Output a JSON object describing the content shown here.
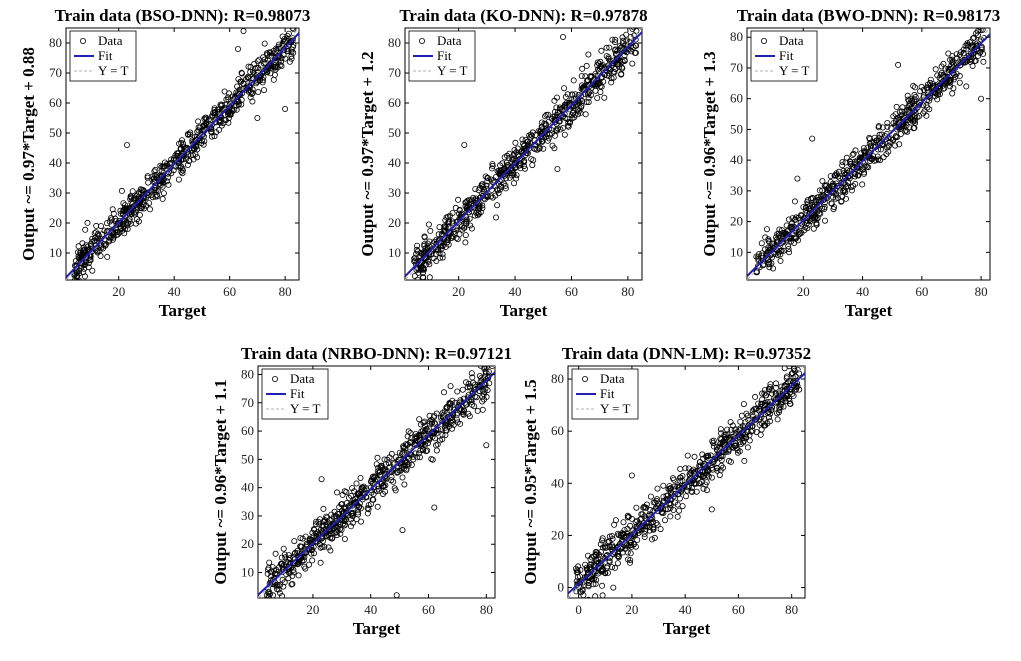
{
  "chart_data": [
    {
      "type": "scatter",
      "title": "Train data (BSO-DNN): R=0.98073",
      "xlabel": "Target",
      "ylabel": "Output ~= 0.97*Target + 0.88",
      "xlim": [
        1,
        85
      ],
      "ylim": [
        1,
        85
      ],
      "xticks": [
        20,
        40,
        60,
        80
      ],
      "yticks": [
        10,
        20,
        30,
        40,
        50,
        60,
        70,
        80
      ],
      "fit": {
        "slope": 0.97,
        "intercept": 0.88
      },
      "legend": [
        "Data",
        "Fit",
        "Y = T"
      ],
      "legend_position": "top-left",
      "grid": false,
      "seed": 11,
      "n_points": 700,
      "noise": 3.0,
      "outliers": [
        [
          23,
          46
        ],
        [
          63,
          78
        ],
        [
          80,
          58
        ],
        [
          70,
          55
        ],
        [
          65,
          84
        ]
      ]
    },
    {
      "type": "scatter",
      "title": "Train data (KO-DNN): R=0.97878",
      "xlabel": "Target",
      "ylabel": "Output ~= 0.97*Target + 1.2",
      "xlim": [
        1,
        85
      ],
      "ylim": [
        1,
        85
      ],
      "xticks": [
        20,
        40,
        60,
        80
      ],
      "yticks": [
        10,
        20,
        30,
        40,
        50,
        60,
        70,
        80
      ],
      "fit": {
        "slope": 0.97,
        "intercept": 1.2
      },
      "legend": [
        "Data",
        "Fit",
        "Y = T"
      ],
      "legend_position": "top-left",
      "grid": false,
      "seed": 23,
      "n_points": 700,
      "noise": 3.2,
      "outliers": [
        [
          22,
          46
        ],
        [
          57,
          82
        ],
        [
          55,
          38
        ],
        [
          83,
          84
        ]
      ]
    },
    {
      "type": "scatter",
      "title": "Train data (BWO-DNN): R=0.98173",
      "xlabel": "Target",
      "ylabel": "Output ~= 0.96*Target + 1.3",
      "xlim": [
        1,
        83
      ],
      "ylim": [
        1,
        83
      ],
      "xticks": [
        20,
        40,
        60,
        80
      ],
      "yticks": [
        10,
        20,
        30,
        40,
        50,
        60,
        70,
        80
      ],
      "fit": {
        "slope": 0.96,
        "intercept": 1.3
      },
      "legend": [
        "Data",
        "Fit",
        "Y = T"
      ],
      "legend_position": "top-left",
      "grid": false,
      "seed": 37,
      "n_points": 700,
      "noise": 2.9,
      "outliers": [
        [
          23,
          47
        ],
        [
          18,
          34
        ],
        [
          80,
          60
        ],
        [
          75,
          64
        ],
        [
          52,
          71
        ]
      ]
    },
    {
      "type": "scatter",
      "title": "Train data (NRBO-DNN): R=0.97121",
      "xlabel": "Target",
      "ylabel": "Output ~= 0.96*Target + 1.1",
      "xlim": [
        1,
        83
      ],
      "ylim": [
        1,
        83
      ],
      "xticks": [
        20,
        40,
        60,
        80
      ],
      "yticks": [
        10,
        20,
        30,
        40,
        50,
        60,
        70,
        80
      ],
      "fit": {
        "slope": 0.96,
        "intercept": 1.1
      },
      "legend": [
        "Data",
        "Fit",
        "Y = T"
      ],
      "legend_position": "top-left",
      "grid": false,
      "seed": 53,
      "n_points": 700,
      "noise": 3.6,
      "outliers": [
        [
          23,
          43
        ],
        [
          49,
          2
        ],
        [
          51,
          25
        ],
        [
          62,
          33
        ],
        [
          80,
          55
        ],
        [
          82,
          83
        ]
      ]
    },
    {
      "type": "scatter",
      "title": "Train data (DNN-LM): R=0.97352",
      "xlabel": "Target",
      "ylabel": "Output ~= 0.95*Target + 1.5",
      "xlim": [
        -4,
        85
      ],
      "ylim": [
        -4,
        85
      ],
      "xticks": [
        0,
        20,
        40,
        60,
        80
      ],
      "yticks": [
        0,
        20,
        40,
        60,
        80
      ],
      "fit": {
        "slope": 0.95,
        "intercept": 1.5
      },
      "legend": [
        "Data",
        "Fit",
        "Y = T"
      ],
      "legend_position": "top-left",
      "grid": false,
      "seed": 71,
      "n_points": 700,
      "noise": 3.8,
      "outliers": [
        [
          9,
          -3
        ],
        [
          13,
          0
        ],
        [
          20,
          43
        ],
        [
          50,
          30
        ],
        [
          72,
          78
        ],
        [
          80,
          82
        ]
      ]
    }
  ],
  "colors": {
    "data_marker": "#000000",
    "fit_line": "#1f1fb4",
    "identity_line": "#b0b0b0",
    "axes": "#000000"
  }
}
